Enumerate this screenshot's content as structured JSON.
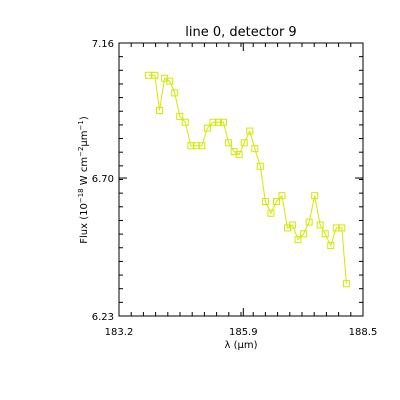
{
  "chart_data": {
    "type": "line",
    "title": "line 0, detector 9",
    "xlabel": "λ (μm)",
    "ylabel": "Flux (10^-18 W cm^-2 μm^-1)",
    "xlim": [
      183.2,
      188.5
    ],
    "ylim": [
      6.23,
      7.16
    ],
    "x_ticks": [
      "183.2",
      "185.9",
      "188.5"
    ],
    "y_ticks": [
      "6.23",
      "6.70",
      "7.16"
    ],
    "grid": false,
    "marker": "square",
    "color": "#d4e800",
    "series": [
      {
        "x": [
          183.84,
          183.98,
          184.08,
          184.19,
          184.3,
          184.41,
          184.52,
          184.64,
          184.76,
          184.88,
          185.0,
          185.12,
          185.24,
          185.36,
          185.47,
          185.58,
          185.7,
          185.81,
          185.92,
          186.04,
          186.15,
          186.27,
          186.38,
          186.5,
          186.62,
          186.74,
          186.86,
          186.97,
          187.09,
          187.21,
          187.33,
          187.45,
          187.57,
          187.68,
          187.8,
          187.92,
          188.04,
          188.14
        ],
        "y": [
          7.05,
          7.05,
          6.93,
          7.04,
          7.03,
          6.99,
          6.91,
          6.89,
          6.81,
          6.81,
          6.81,
          6.87,
          6.89,
          6.89,
          6.89,
          6.82,
          6.79,
          6.78,
          6.82,
          6.86,
          6.8,
          6.74,
          6.62,
          6.58,
          6.62,
          6.64,
          6.53,
          6.54,
          6.49,
          6.51,
          6.55,
          6.64,
          6.54,
          6.51,
          6.47,
          6.53,
          6.53,
          6.34
        ]
      }
    ]
  }
}
